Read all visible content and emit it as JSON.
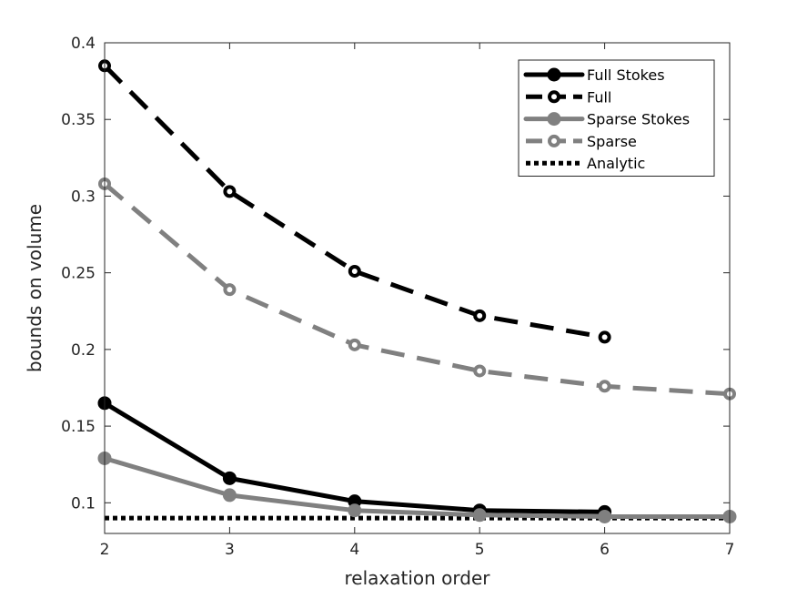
{
  "chart_data": {
    "type": "line",
    "title": "",
    "xlabel": "relaxation order",
    "ylabel": "bounds on volume",
    "xlim": [
      2,
      7
    ],
    "ylim": [
      0.08,
      0.4
    ],
    "xticks": [
      2,
      3,
      4,
      5,
      6,
      7
    ],
    "yticks": [
      0.1,
      0.15,
      0.2,
      0.25,
      0.3,
      0.35,
      0.4
    ],
    "xtick_labels": [
      "2",
      "3",
      "4",
      "5",
      "6",
      "7"
    ],
    "ytick_labels": [
      "0.1",
      "0.15",
      "0.2",
      "0.25",
      "0.3",
      "0.35",
      "0.4"
    ],
    "grid": false,
    "legend_position": "top-right",
    "series": [
      {
        "name": "Full Stokes",
        "color": "#000000",
        "style": "solid",
        "marker": "filled-circle",
        "x": [
          2,
          3,
          4,
          5,
          6
        ],
        "y": [
          0.165,
          0.116,
          0.101,
          0.095,
          0.094
        ]
      },
      {
        "name": "Full",
        "color": "#000000",
        "style": "dashed",
        "marker": "hollow-circle",
        "x": [
          2,
          3,
          4,
          5,
          6
        ],
        "y": [
          0.385,
          0.303,
          0.251,
          0.222,
          0.208
        ]
      },
      {
        "name": "Sparse Stokes",
        "color": "#808080",
        "style": "solid",
        "marker": "filled-circle",
        "x": [
          2,
          3,
          4,
          5,
          6,
          7
        ],
        "y": [
          0.129,
          0.105,
          0.095,
          0.092,
          0.091,
          0.091
        ]
      },
      {
        "name": "Sparse",
        "color": "#808080",
        "style": "dashed",
        "marker": "hollow-circle",
        "x": [
          2,
          3,
          4,
          5,
          6,
          7
        ],
        "y": [
          0.308,
          0.239,
          0.203,
          0.186,
          0.176,
          0.171
        ]
      },
      {
        "name": "Analytic",
        "color": "#000000",
        "style": "dotted",
        "marker": "none",
        "x": [
          2,
          7
        ],
        "y": [
          0.09,
          0.09
        ]
      }
    ]
  }
}
